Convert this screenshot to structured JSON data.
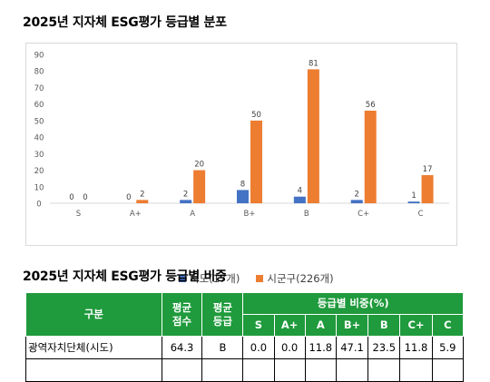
{
  "titles": {
    "chart_title": "2025년 지자체 ESG평가 등급별 분포",
    "table_title": "2025년 지자체 ESG평가 등급별 비중"
  },
  "chart_data": {
    "type": "bar",
    "categories": [
      "S",
      "A+",
      "A",
      "B+",
      "B",
      "C+",
      "C"
    ],
    "series": [
      {
        "name": "시도(17개)",
        "values": [
          0,
          0,
          2,
          8,
          4,
          2,
          1
        ],
        "color": "#4472c4"
      },
      {
        "name": "시군구(226개)",
        "values": [
          0,
          2,
          20,
          50,
          81,
          56,
          17
        ],
        "color": "#ed7d31"
      }
    ],
    "ylim": [
      0,
      90
    ],
    "yticks": [
      0,
      10,
      20,
      30,
      40,
      50,
      60,
      70,
      80,
      90
    ],
    "legend": "bottom",
    "grid": false
  },
  "table": {
    "headers": {
      "group": "구분",
      "avg_score": "평균\n점수",
      "avg_grade": "평균\n등급",
      "ratio_group": "등급별 비중(%)",
      "grades": [
        "S",
        "A+",
        "A",
        "B+",
        "B",
        "C+",
        "C"
      ]
    },
    "rows": [
      {
        "name": "광역자치단체(시도)",
        "score": "64.3",
        "grade": "B",
        "ratios": [
          "0.0",
          "0.0",
          "11.8",
          "47.1",
          "23.5",
          "11.8",
          "5.9"
        ]
      }
    ]
  }
}
